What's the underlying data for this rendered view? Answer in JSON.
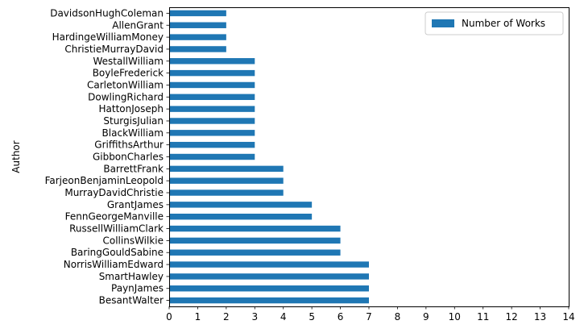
{
  "chart_data": {
    "type": "bar",
    "orientation": "horizontal",
    "ylabel": "Author",
    "xlabel": "",
    "xlim": [
      0,
      14
    ],
    "xticks": [
      "0",
      "1",
      "2",
      "3",
      "4",
      "5",
      "6",
      "7",
      "8",
      "9",
      "10",
      "11",
      "12",
      "13",
      "14"
    ],
    "grid": false,
    "legend_position": "top-right",
    "series": [
      {
        "name": "Number of Works",
        "color": "#1f77b4",
        "categories": [
          "DavidsonHughColeman",
          "AllenGrant",
          "HardingeWilliamMoney",
          "ChristieMurrayDavid",
          "WestallWilliam",
          "BoyleFrederick",
          "CarletonWilliam",
          "DowlingRichard",
          "HattonJoseph",
          "SturgisJulian",
          "BlackWilliam",
          "GriffithsArthur",
          "GibbonCharles",
          "BarrettFrank",
          "FarjeonBenjaminLeopold",
          "MurrayDavidChristie",
          "GrantJames",
          "FennGeorgeManville",
          "RussellWilliamClark",
          "CollinsWilkie",
          "BaringGouldSabine",
          "NorrisWilliamEdward",
          "SmartHawley",
          "PaynJames",
          "BesantWalter"
        ],
        "values": [
          2,
          2,
          2,
          2,
          3,
          3,
          3,
          3,
          3,
          3,
          3,
          3,
          3,
          4,
          4,
          4,
          5,
          5,
          6,
          6,
          6,
          7,
          7,
          7,
          7
        ]
      }
    ]
  }
}
